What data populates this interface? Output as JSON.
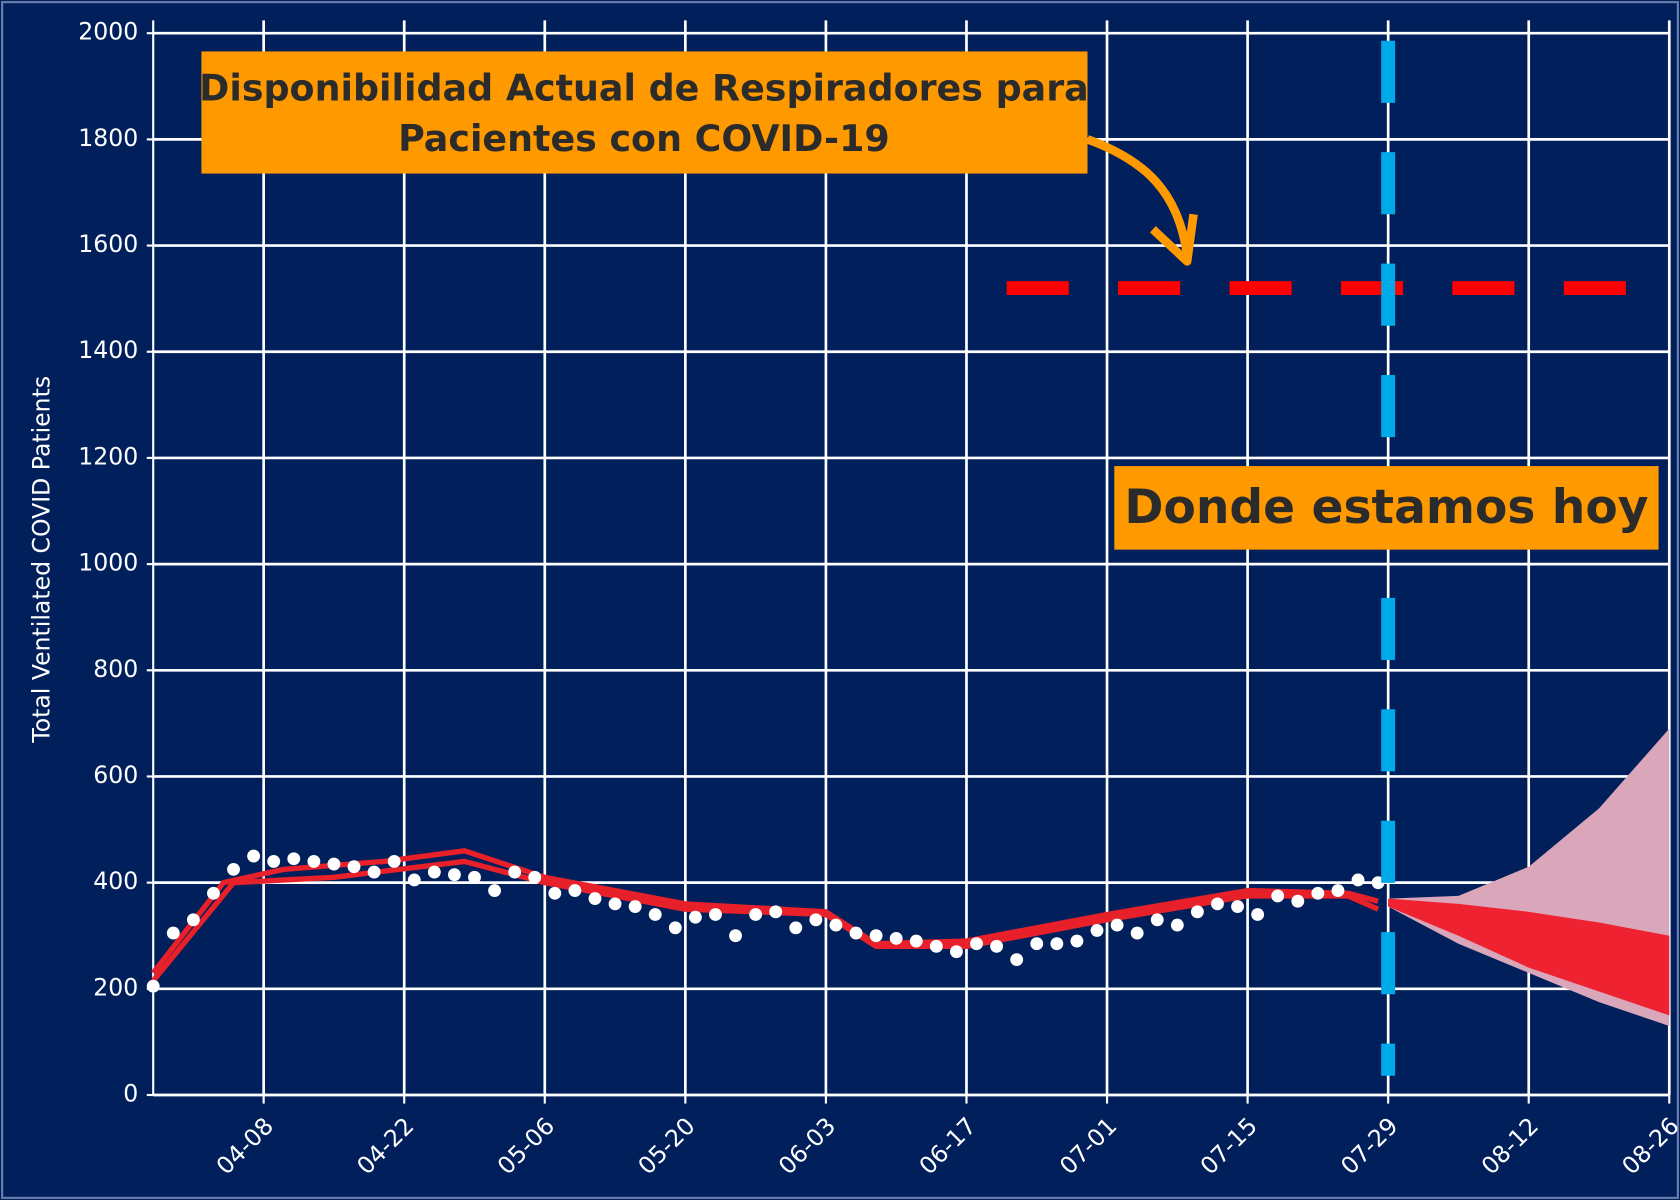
{
  "chart_data": {
    "type": "scatter",
    "ylabel": "Total Ventilated COVID Patients",
    "xlim": [
      "03-28",
      "08-26"
    ],
    "ylim": [
      0,
      2000
    ],
    "xticks": [
      "04-08",
      "04-22",
      "05-06",
      "05-20",
      "06-03",
      "06-17",
      "07-01",
      "07-15",
      "07-29",
      "08-12",
      "08-26"
    ],
    "yticks": [
      0,
      200,
      400,
      600,
      800,
      1000,
      1200,
      1400,
      1600,
      1800,
      2000
    ],
    "grid": true,
    "series": [
      {
        "type": "area",
        "color": "#d9a6ba",
        "x": [
          "07-29",
          "08-05",
          "08-12",
          "08-19",
          "08-26"
        ],
        "lower": [
          355,
          285,
          230,
          175,
          130
        ],
        "upper": [
          370,
          375,
          430,
          540,
          690
        ]
      },
      {
        "type": "area",
        "color": "#ee2230",
        "x": [
          "07-29",
          "08-05",
          "08-12",
          "08-19",
          "08-26"
        ],
        "lower": [
          355,
          300,
          240,
          195,
          150
        ],
        "upper": [
          370,
          360,
          345,
          325,
          300
        ]
      },
      {
        "type": "line",
        "color": "#e8202a",
        "x": [
          "03-28",
          "04-04",
          "04-10",
          "04-20",
          "04-28",
          "05-06",
          "05-20",
          "06-03",
          "06-08",
          "06-17",
          "07-01",
          "07-15",
          "07-25",
          "07-28"
        ],
        "values": [
          230,
          400,
          425,
          440,
          460,
          410,
          360,
          345,
          285,
          290,
          340,
          385,
          380,
          365
        ]
      },
      {
        "type": "line",
        "color": "#e8202a",
        "x": [
          "03-28",
          "04-05",
          "04-15",
          "04-28",
          "05-06",
          "05-20",
          "06-03",
          "06-08",
          "06-17",
          "07-01",
          "07-15",
          "07-25",
          "07-28"
        ],
        "values": [
          215,
          400,
          410,
          440,
          400,
          350,
          340,
          280,
          280,
          330,
          375,
          375,
          350
        ]
      },
      {
        "type": "scatter",
        "color": "#ffffff",
        "x": [
          "03-28",
          "03-30",
          "04-01",
          "04-03",
          "04-05",
          "04-07",
          "04-09",
          "04-11",
          "04-13",
          "04-15",
          "04-17",
          "04-19",
          "04-21",
          "04-23",
          "04-25",
          "04-27",
          "04-29",
          "05-01",
          "05-03",
          "05-05",
          "05-07",
          "05-09",
          "05-11",
          "05-13",
          "05-15",
          "05-17",
          "05-19",
          "05-21",
          "05-23",
          "05-25",
          "05-27",
          "05-29",
          "05-31",
          "06-02",
          "06-04",
          "06-06",
          "06-08",
          "06-10",
          "06-12",
          "06-14",
          "06-16",
          "06-18",
          "06-20",
          "06-22",
          "06-24",
          "06-26",
          "06-28",
          "06-30",
          "07-02",
          "07-04",
          "07-06",
          "07-08",
          "07-10",
          "07-12",
          "07-14",
          "07-16",
          "07-18",
          "07-20",
          "07-22",
          "07-24",
          "07-26",
          "07-28"
        ],
        "values": [
          205,
          305,
          330,
          380,
          425,
          450,
          440,
          445,
          440,
          435,
          430,
          420,
          440,
          405,
          420,
          415,
          410,
          385,
          420,
          410,
          380,
          385,
          370,
          360,
          355,
          340,
          315,
          335,
          340,
          300,
          340,
          345,
          315,
          330,
          320,
          305,
          300,
          295,
          290,
          280,
          270,
          285,
          280,
          255,
          285,
          285,
          290,
          310,
          320,
          305,
          330,
          320,
          345,
          360,
          355,
          340,
          375,
          365,
          380,
          385,
          405,
          400
        ]
      }
    ],
    "hline": {
      "value": 1520,
      "from": "06-21",
      "color": "#ff0000"
    },
    "vline": {
      "x": "07-29",
      "color": "#00a9e8"
    },
    "annotations": [
      {
        "lines": [
          "Disponibilidad Actual de Respiradores para",
          "Pacientes con COVID-19"
        ]
      },
      {
        "lines": [
          "Donde estamos hoy"
        ]
      }
    ]
  }
}
